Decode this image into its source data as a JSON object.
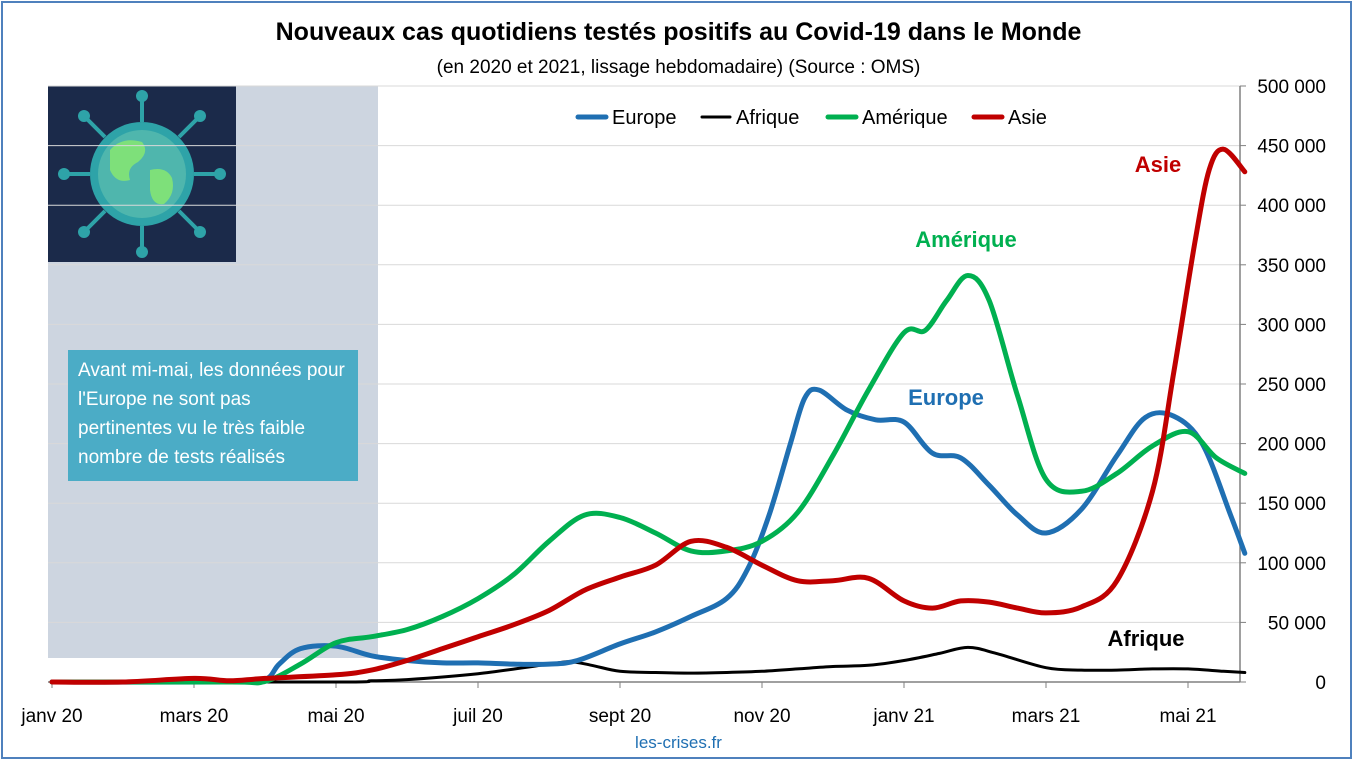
{
  "chart_data": {
    "type": "line",
    "title": "Nouveaux cas quotidiens testés positifs au Covid-19 dans le Monde",
    "subtitle": "(en 2020 et 2021, lissage hebdomadaire) (Source : OMS)",
    "footer": "les-crises.fr",
    "note": "Avant mi-mai, les données pour l'Europe ne sont pas pertinentes vu le très faible nombre de tests réalisés",
    "x_ticks": [
      "janv 20",
      "mars 20",
      "mai 20",
      "juil 20",
      "sept 20",
      "nov 20",
      "janv 21",
      "mars 21",
      "mai 21"
    ],
    "y_ticks": [
      "0",
      "50 000",
      "100 000",
      "150 000",
      "200 000",
      "250 000",
      "300 000",
      "350 000",
      "400 000",
      "450 000",
      "500 000"
    ],
    "ylim": [
      0,
      500000
    ],
    "y_axis_position": "right",
    "grid": true,
    "legend_position": "top",
    "x_unit": "months since janv 20",
    "series": [
      {
        "name": "Europe",
        "color": "#1f6fb2",
        "label": "Europe",
        "points": [
          [
            0,
            0
          ],
          [
            2.5,
            0
          ],
          [
            3,
            2000
          ],
          [
            3.2,
            15000
          ],
          [
            3.5,
            28000
          ],
          [
            4,
            30000
          ],
          [
            4.5,
            22000
          ],
          [
            5,
            18000
          ],
          [
            5.5,
            16000
          ],
          [
            6,
            16000
          ],
          [
            6.5,
            15000
          ],
          [
            7,
            15000
          ],
          [
            7.4,
            18000
          ],
          [
            8,
            32000
          ],
          [
            8.5,
            42000
          ],
          [
            9,
            55000
          ],
          [
            9.5,
            70000
          ],
          [
            9.8,
            95000
          ],
          [
            10.1,
            140000
          ],
          [
            10.4,
            200000
          ],
          [
            10.6,
            238000
          ],
          [
            10.8,
            245000
          ],
          [
            11.2,
            228000
          ],
          [
            11.6,
            220000
          ],
          [
            12,
            218000
          ],
          [
            12.4,
            192000
          ],
          [
            12.8,
            188000
          ],
          [
            13.2,
            165000
          ],
          [
            13.6,
            140000
          ],
          [
            14,
            125000
          ],
          [
            14.5,
            145000
          ],
          [
            15,
            190000
          ],
          [
            15.4,
            222000
          ],
          [
            15.8,
            223000
          ],
          [
            16.2,
            200000
          ],
          [
            16.6,
            140000
          ],
          [
            16.8,
            108000
          ]
        ]
      },
      {
        "name": "Afrique",
        "color": "#000000",
        "label": "Afrique",
        "points": [
          [
            0,
            0
          ],
          [
            4,
            0
          ],
          [
            4.5,
            1000
          ],
          [
            5,
            2000
          ],
          [
            6,
            7000
          ],
          [
            7,
            15000
          ],
          [
            7.3,
            17000
          ],
          [
            7.6,
            14000
          ],
          [
            8,
            9000
          ],
          [
            8.5,
            8000
          ],
          [
            9,
            7500
          ],
          [
            9.5,
            8000
          ],
          [
            10,
            9000
          ],
          [
            10.5,
            11000
          ],
          [
            11,
            13000
          ],
          [
            11.5,
            14000
          ],
          [
            12,
            18000
          ],
          [
            12.5,
            24000
          ],
          [
            12.9,
            29000
          ],
          [
            13.3,
            24000
          ],
          [
            14,
            12000
          ],
          [
            14.5,
            10000
          ],
          [
            15,
            10000
          ],
          [
            15.5,
            11000
          ],
          [
            16,
            11000
          ],
          [
            16.5,
            9000
          ],
          [
            16.8,
            8000
          ]
        ]
      },
      {
        "name": "Amérique",
        "color": "#00b050",
        "label": "Amérique",
        "points": [
          [
            0,
            0
          ],
          [
            2.5,
            0
          ],
          [
            3,
            500
          ],
          [
            3.5,
            15000
          ],
          [
            4,
            33000
          ],
          [
            4.5,
            38000
          ],
          [
            5,
            44000
          ],
          [
            5.5,
            55000
          ],
          [
            6,
            70000
          ],
          [
            6.5,
            90000
          ],
          [
            7,
            118000
          ],
          [
            7.5,
            140000
          ],
          [
            8,
            138000
          ],
          [
            8.5,
            125000
          ],
          [
            9,
            110000
          ],
          [
            9.5,
            110000
          ],
          [
            10,
            118000
          ],
          [
            10.5,
            142000
          ],
          [
            11,
            190000
          ],
          [
            11.5,
            245000
          ],
          [
            12,
            293000
          ],
          [
            12.3,
            295000
          ],
          [
            12.6,
            320000
          ],
          [
            12.9,
            341000
          ],
          [
            13.2,
            320000
          ],
          [
            13.6,
            240000
          ],
          [
            14,
            170000
          ],
          [
            14.5,
            160000
          ],
          [
            15,
            175000
          ],
          [
            15.5,
            198000
          ],
          [
            16,
            210000
          ],
          [
            16.4,
            188000
          ],
          [
            16.8,
            175000
          ]
        ]
      },
      {
        "name": "Asie",
        "color": "#c00000",
        "label": "Asie",
        "points": [
          [
            0,
            0
          ],
          [
            1,
            0
          ],
          [
            2,
            3000
          ],
          [
            2.5,
            1000
          ],
          [
            3,
            3000
          ],
          [
            4,
            6000
          ],
          [
            4.5,
            10000
          ],
          [
            5,
            18000
          ],
          [
            5.5,
            28000
          ],
          [
            6,
            38000
          ],
          [
            6.5,
            48000
          ],
          [
            7,
            60000
          ],
          [
            7.5,
            77000
          ],
          [
            8,
            88000
          ],
          [
            8.5,
            98000
          ],
          [
            9,
            118000
          ],
          [
            9.5,
            113000
          ],
          [
            10,
            98000
          ],
          [
            10.5,
            85000
          ],
          [
            11,
            85000
          ],
          [
            11.5,
            87000
          ],
          [
            12,
            68000
          ],
          [
            12.4,
            62000
          ],
          [
            12.8,
            68000
          ],
          [
            13.2,
            67000
          ],
          [
            13.6,
            62000
          ],
          [
            14,
            58000
          ],
          [
            14.5,
            63000
          ],
          [
            15,
            85000
          ],
          [
            15.5,
            160000
          ],
          [
            15.8,
            260000
          ],
          [
            16.1,
            370000
          ],
          [
            16.3,
            430000
          ],
          [
            16.5,
            447000
          ],
          [
            16.8,
            428000
          ]
        ]
      }
    ]
  }
}
